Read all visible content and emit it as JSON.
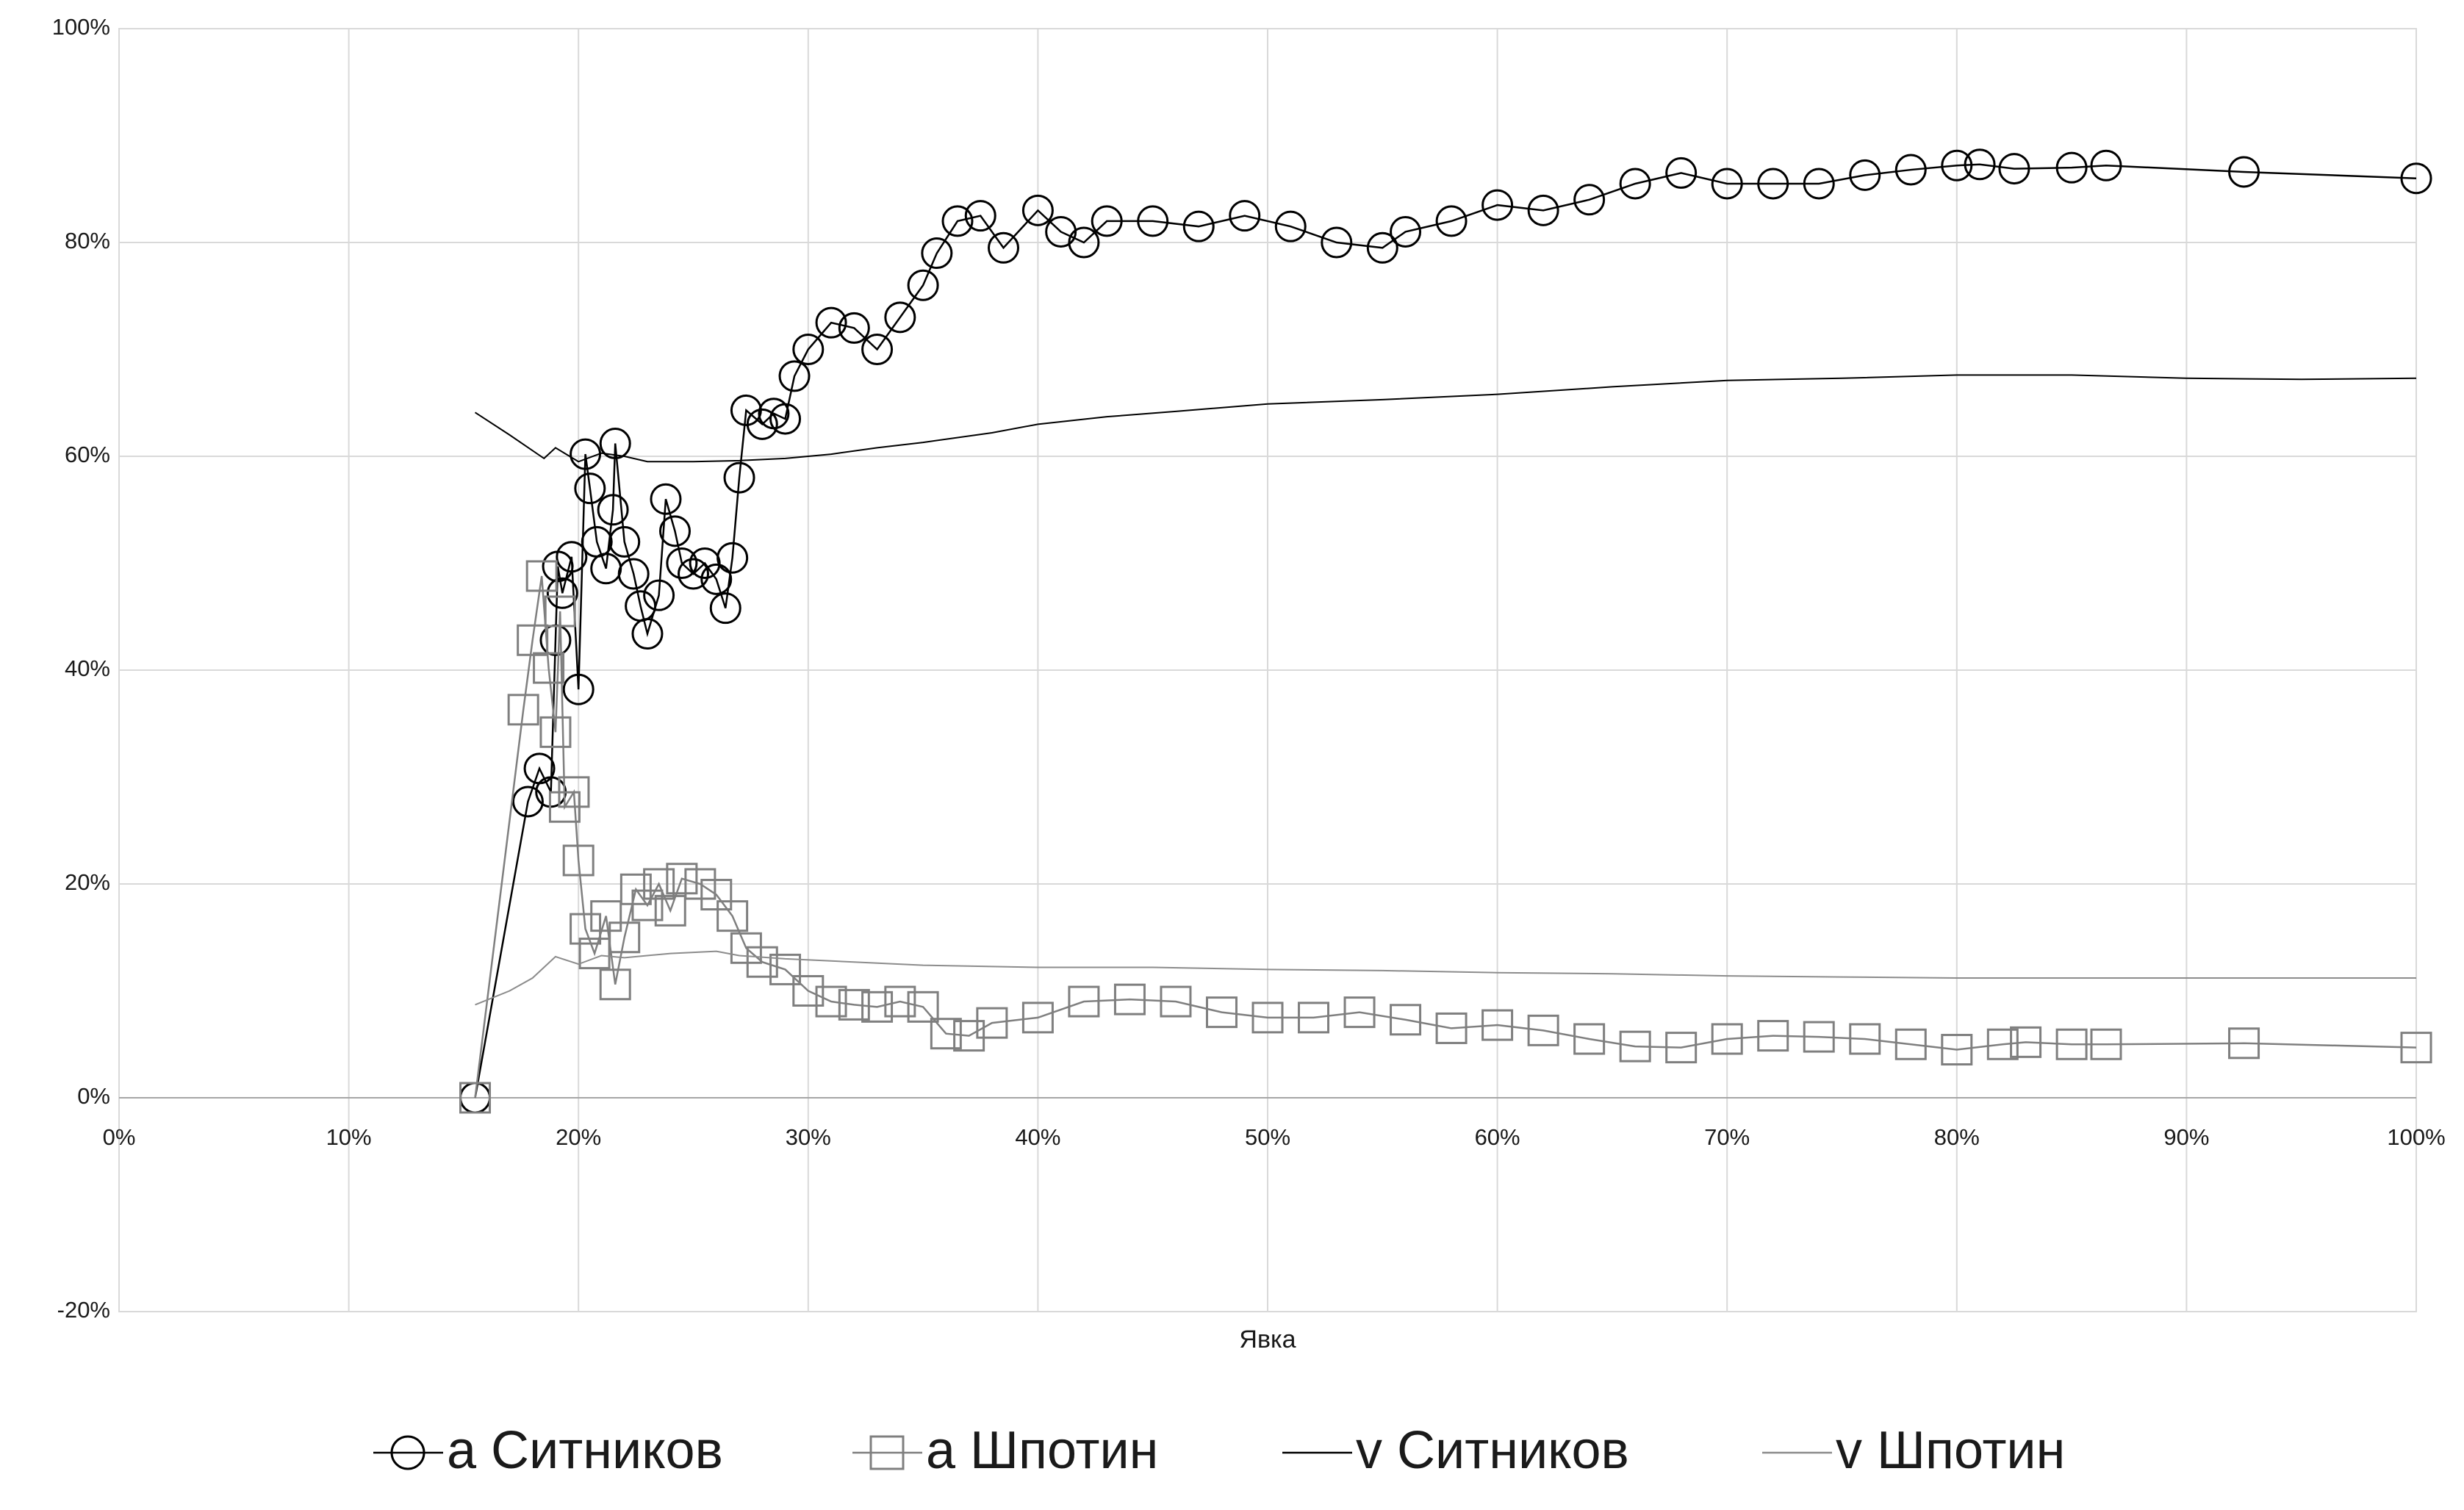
{
  "chart_data": {
    "type": "line",
    "x_label": "Явка",
    "xlim": [
      0,
      100
    ],
    "ylim": [
      -20,
      100
    ],
    "xticks": [
      {
        "value": 0,
        "label": "0%"
      },
      {
        "value": 10,
        "label": "10%"
      },
      {
        "value": 20,
        "label": "20%"
      },
      {
        "value": 30,
        "label": "30%"
      },
      {
        "value": 40,
        "label": "40%"
      },
      {
        "value": 50,
        "label": "50%"
      },
      {
        "value": 60,
        "label": "60%"
      },
      {
        "value": 70,
        "label": "70%"
      },
      {
        "value": 80,
        "label": "80%"
      },
      {
        "value": 90,
        "label": "90%"
      },
      {
        "value": 100,
        "label": "100%"
      }
    ],
    "yticks": [
      {
        "value": -20,
        "label": "-20%"
      },
      {
        "value": 0,
        "label": "0%"
      },
      {
        "value": 20,
        "label": "20%"
      },
      {
        "value": 40,
        "label": "40%"
      },
      {
        "value": 60,
        "label": "60%"
      },
      {
        "value": 80,
        "label": "80%"
      },
      {
        "value": 100,
        "label": "100%"
      }
    ],
    "grid": true,
    "legend": "bottom",
    "series": [
      {
        "name": "a Ситников",
        "color": "#000000",
        "marker": "circle",
        "x": [
          15.5,
          17.8,
          18.3,
          18.8,
          19,
          19.1,
          19.3,
          19.7,
          20,
          20.3,
          20.5,
          20.8,
          21.2,
          21.5,
          21.6,
          22,
          22.4,
          22.7,
          23,
          23.5,
          23.8,
          24.2,
          24.5,
          25,
          25.5,
          26,
          26.4,
          26.7,
          27,
          27.3,
          28,
          28.5,
          29,
          29.4,
          30,
          31,
          32,
          33,
          34,
          35,
          35.6,
          36.5,
          37.5,
          38.5,
          40,
          41,
          42,
          43,
          45,
          47,
          49,
          51,
          53,
          55,
          56,
          58,
          60,
          62,
          64,
          66,
          68,
          70,
          72,
          74,
          76,
          78,
          80,
          81,
          82.5,
          85,
          86.5,
          92.5,
          100
        ],
        "values": [
          0,
          27.7,
          30.8,
          28.6,
          42.8,
          49.7,
          47.2,
          50.6,
          38.2,
          60.2,
          57,
          52,
          49.5,
          55,
          61.2,
          52,
          49,
          46,
          43.4,
          47,
          56,
          53,
          50,
          49,
          50,
          48.5,
          45.8,
          50.5,
          58,
          64.3,
          63,
          64,
          63.5,
          67.5,
          70,
          72.5,
          72,
          70,
          73,
          76,
          79,
          82,
          82.5,
          79.5,
          83,
          81,
          80,
          82,
          82,
          81.5,
          82.5,
          81.5,
          80,
          79.5,
          81,
          82,
          83.5,
          83,
          84,
          85.5,
          86.5,
          85.5,
          85.5,
          85.5,
          86.3,
          86.8,
          87.2,
          87.3,
          86.9,
          87,
          87.2,
          86.6,
          86
        ]
      },
      {
        "name": "a Шпотин",
        "color": "#7f7f7f",
        "marker": "square",
        "x": [
          15.5,
          17.6,
          18,
          18.4,
          18.7,
          19,
          19.2,
          19.4,
          19.8,
          20,
          20.3,
          20.7,
          21.2,
          21.6,
          22,
          22.5,
          23,
          23.5,
          24,
          24.5,
          25.3,
          26,
          26.7,
          27.3,
          28,
          29,
          30,
          31,
          32,
          33,
          34,
          35,
          36,
          37,
          38,
          40,
          42,
          44,
          46,
          48,
          50,
          52,
          54,
          56,
          58,
          60,
          62,
          64,
          66,
          68,
          70,
          72,
          74,
          76,
          78,
          80,
          82,
          83,
          85,
          86.5,
          92.5,
          100
        ],
        "values": [
          0,
          36.3,
          42.8,
          48.8,
          40.2,
          34.2,
          45.5,
          27.2,
          28.6,
          22.2,
          15.8,
          13.5,
          17,
          10.6,
          15,
          19.5,
          18,
          20,
          17.5,
          20.5,
          20,
          19,
          17,
          14,
          12.7,
          12,
          10,
          9,
          8.7,
          8.5,
          9,
          8.5,
          6,
          5.8,
          7,
          7.5,
          9,
          9.2,
          9,
          8,
          7.5,
          7.5,
          8,
          7.3,
          6.5,
          6.8,
          6.3,
          5.5,
          4.8,
          4.7,
          5.5,
          5.8,
          5.7,
          5.5,
          5,
          4.5,
          5,
          5.2,
          5,
          5,
          5.1,
          4.7
        ]
      },
      {
        "name": "v Ситников",
        "color": "#000000",
        "x": [
          15.5,
          17,
          18.5,
          19,
          20,
          21,
          22,
          23,
          25,
          27,
          29,
          31,
          33,
          35,
          38,
          40,
          43,
          46,
          50,
          55,
          60,
          65,
          70,
          75,
          80,
          85,
          90,
          95,
          100
        ],
        "values": [
          64.1,
          62,
          59.8,
          60.8,
          59.5,
          60.3,
          60,
          59.5,
          59.5,
          59.6,
          59.8,
          60.2,
          60.8,
          61.3,
          62.2,
          63,
          63.7,
          64.2,
          64.9,
          65.3,
          65.8,
          66.5,
          67.1,
          67.3,
          67.6,
          67.6,
          67.3,
          67.2,
          67.3
        ]
      },
      {
        "name": "v Шпотин",
        "color": "#8c8c8c",
        "x": [
          15.5,
          17,
          18,
          19,
          20,
          21,
          22,
          24,
          26,
          27,
          29,
          31,
          35,
          40,
          45,
          50,
          55,
          60,
          65,
          70,
          75,
          80,
          90,
          100
        ],
        "values": [
          8.7,
          10,
          11.2,
          13.2,
          12.5,
          13.3,
          13.1,
          13.5,
          13.7,
          13.3,
          13,
          12.8,
          12.4,
          12.2,
          12.2,
          12,
          11.9,
          11.7,
          11.6,
          11.4,
          11.3,
          11.2,
          11.2,
          11.2
        ]
      }
    ]
  }
}
